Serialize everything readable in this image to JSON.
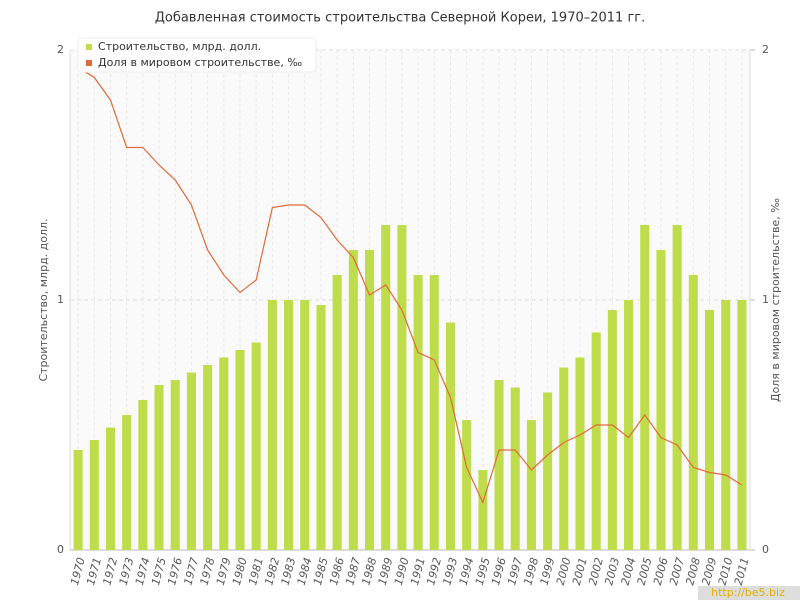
{
  "chart_data": {
    "type": "bar-line",
    "title": "Добавленная стоимость строительства Северной Кореи, 1970–2011 гг.",
    "y_label": "Строительство, млрд. долл.",
    "y2_label": "Доля в мировом строительстве, ‰",
    "watermark": "http://be5.biz",
    "categories": [
      "1970",
      "1971",
      "1972",
      "1973",
      "1974",
      "1975",
      "1976",
      "1977",
      "1978",
      "1979",
      "1980",
      "1981",
      "1982",
      "1983",
      "1984",
      "1985",
      "1986",
      "1987",
      "1988",
      "1989",
      "1990",
      "1991",
      "1992",
      "1993",
      "1994",
      "1995",
      "1996",
      "1997",
      "1998",
      "1999",
      "2000",
      "2001",
      "2002",
      "2003",
      "2004",
      "2005",
      "2006",
      "2007",
      "2008",
      "2009",
      "2010",
      "2011"
    ],
    "series": [
      {
        "name": "Строительство, млрд. долл.",
        "type": "bar",
        "color": "#bfdd4a",
        "values": [
          0.4,
          0.44,
          0.49,
          0.54,
          0.6,
          0.66,
          0.68,
          0.71,
          0.74,
          0.77,
          0.8,
          0.83,
          1.0,
          1.0,
          1.0,
          0.98,
          1.1,
          1.2,
          1.2,
          1.3,
          1.3,
          1.1,
          1.1,
          0.91,
          0.52,
          0.32,
          0.68,
          0.65,
          0.52,
          0.63,
          0.73,
          0.77,
          0.87,
          0.96,
          1.0,
          1.3,
          1.2,
          1.3,
          1.1,
          0.96,
          1.0,
          1.0
        ]
      },
      {
        "name": "Доля в мировом строительстве, ‰",
        "type": "line",
        "axis": "y2",
        "color": "#e06a3a",
        "values": [
          1.93,
          1.89,
          1.8,
          1.61,
          1.61,
          1.54,
          1.48,
          1.38,
          1.2,
          1.1,
          1.03,
          1.08,
          1.37,
          1.38,
          1.38,
          1.33,
          1.24,
          1.17,
          1.02,
          1.06,
          0.96,
          0.79,
          0.76,
          0.61,
          0.33,
          0.19,
          0.4,
          0.4,
          0.32,
          0.38,
          0.43,
          0.46,
          0.5,
          0.5,
          0.45,
          0.54,
          0.45,
          0.42,
          0.33,
          0.31,
          0.3,
          0.26
        ]
      }
    ],
    "ylim": [
      0,
      2
    ],
    "yticks": [
      0,
      1,
      2
    ],
    "y2lim": [
      0,
      2
    ],
    "y2ticks": [
      0,
      1,
      2
    ],
    "grid": true,
    "legend": "top-left"
  }
}
